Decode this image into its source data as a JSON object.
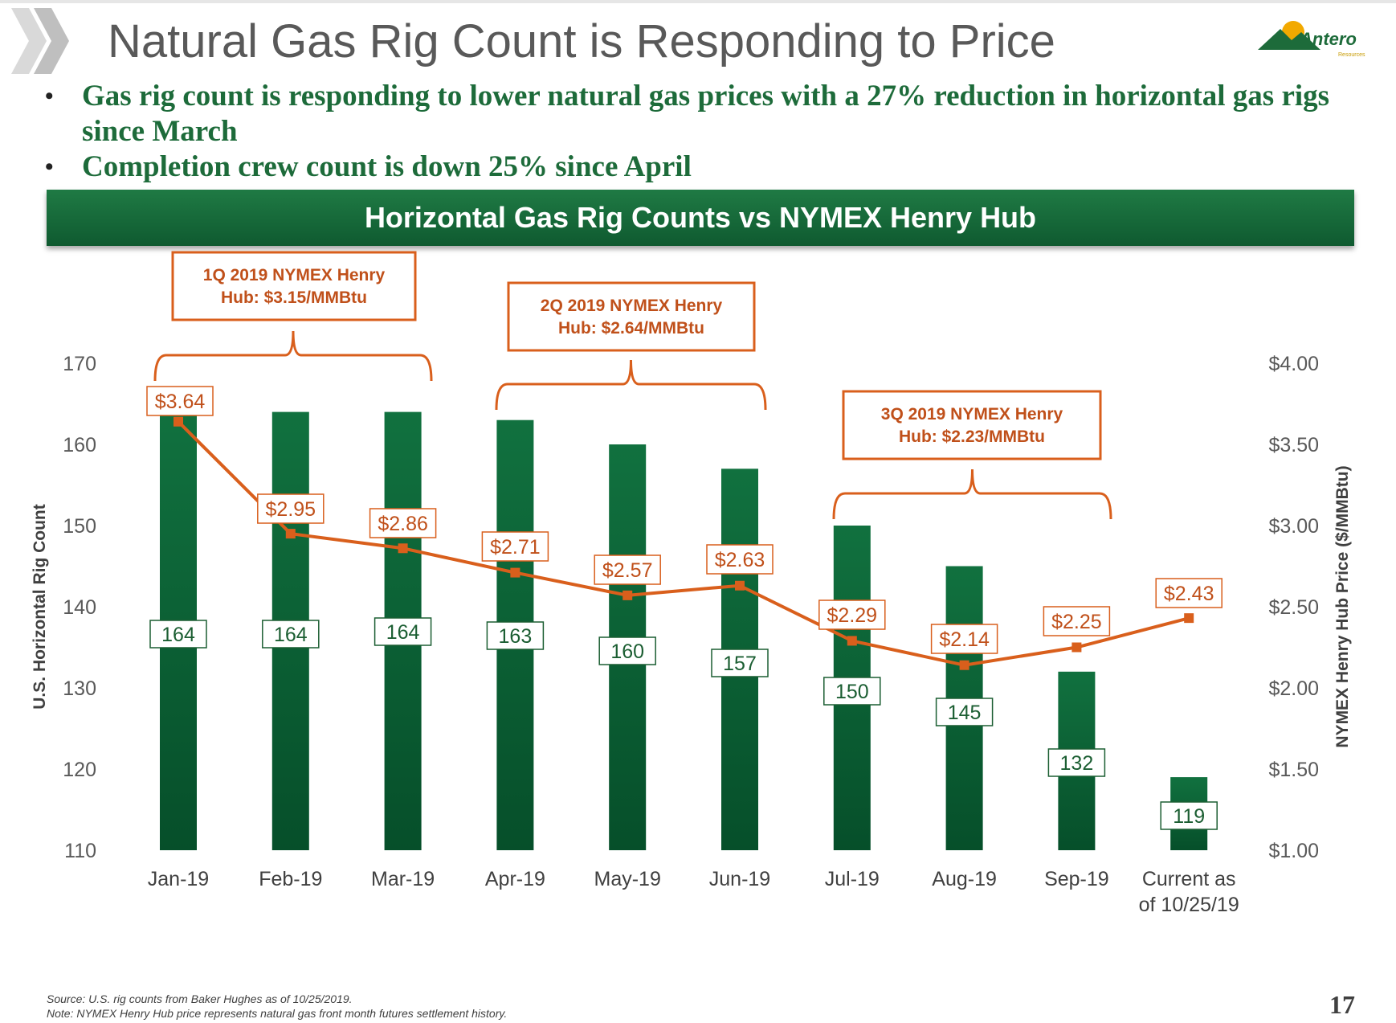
{
  "slide": {
    "title": "Natural Gas Rig Count is Responding to Price",
    "bullets": [
      "Gas rig count is responding to lower natural gas prices with a 27% reduction in horizontal gas rigs since March",
      "Completion crew count is down 25% since April"
    ],
    "bullet_symbol": "•",
    "logo_text": "Antero",
    "logo_subtext": "Resources",
    "page_number": "17",
    "footnote_source": "Source: U.S. rig counts from Baker Hughes as of 10/25/2019.",
    "footnote_note": "Note:  NYMEX Henry Hub price represents natural gas front month futures settlement history."
  },
  "colors": {
    "bar": "#11713f",
    "bar_dark": "#064f2a",
    "price_line": "#d95f1c",
    "callout_border": "#d95f1c",
    "callout_text": "#c0501a",
    "title_text": "#595959",
    "bullet_text": "#1d6b3a"
  },
  "chart_data": {
    "type": "bar",
    "title": "Horizontal Gas Rig Counts vs NYMEX Henry Hub",
    "categories": [
      "Jan-19",
      "Feb-19",
      "Mar-19",
      "Apr-19",
      "May-19",
      "Jun-19",
      "Jul-19",
      "Aug-19",
      "Sep-19",
      "Current as of 10/25/19"
    ],
    "series": [
      {
        "name": "",
        "type": "bar",
        "axis": "left",
        "values": [
          164,
          164,
          164,
          163,
          160,
          157,
          150,
          145,
          132,
          119
        ],
        "labels": [
          "164",
          "164",
          "164",
          "163",
          "160",
          "157",
          "150",
          "145",
          "132",
          "119"
        ]
      },
      {
        "name": "",
        "type": "line",
        "axis": "right",
        "values": [
          3.64,
          2.95,
          2.86,
          2.71,
          2.57,
          2.63,
          2.29,
          2.14,
          2.25,
          2.43
        ],
        "labels": [
          "$3.64",
          "$2.95",
          "$2.86",
          "$2.71",
          "$2.57",
          "$2.63",
          "$2.29",
          "$2.14",
          "$2.25",
          "$2.43"
        ]
      }
    ],
    "ylabel": "U.S. Horizontal Rig Count",
    "ylim": [
      110,
      170
    ],
    "yticks": [
      "110",
      "120",
      "130",
      "140",
      "150",
      "160",
      "170"
    ],
    "y2label": "NYMEX Henry Hub Price ($/MMBtu)",
    "y2lim": [
      1.0,
      4.0
    ],
    "y2ticks": [
      "$1.00",
      "$1.50",
      "$2.00",
      "$2.50",
      "$3.00",
      "$3.50",
      "$4.00"
    ],
    "grid": false,
    "annotations": [
      {
        "lines": [
          "1Q 2019 NYMEX Henry",
          "Hub: $3.15/MMBtu"
        ],
        "from_category": "Jan-19",
        "to_category": "Mar-19"
      },
      {
        "lines": [
          "2Q 2019 NYMEX Henry",
          "Hub: $2.64/MMBtu"
        ],
        "from_category": "Apr-19",
        "to_category": "Jun-19"
      },
      {
        "lines": [
          "3Q 2019 NYMEX Henry",
          "Hub: $2.23/MMBtu"
        ],
        "from_category": "Jul-19",
        "to_category": "Sep-19"
      }
    ]
  }
}
